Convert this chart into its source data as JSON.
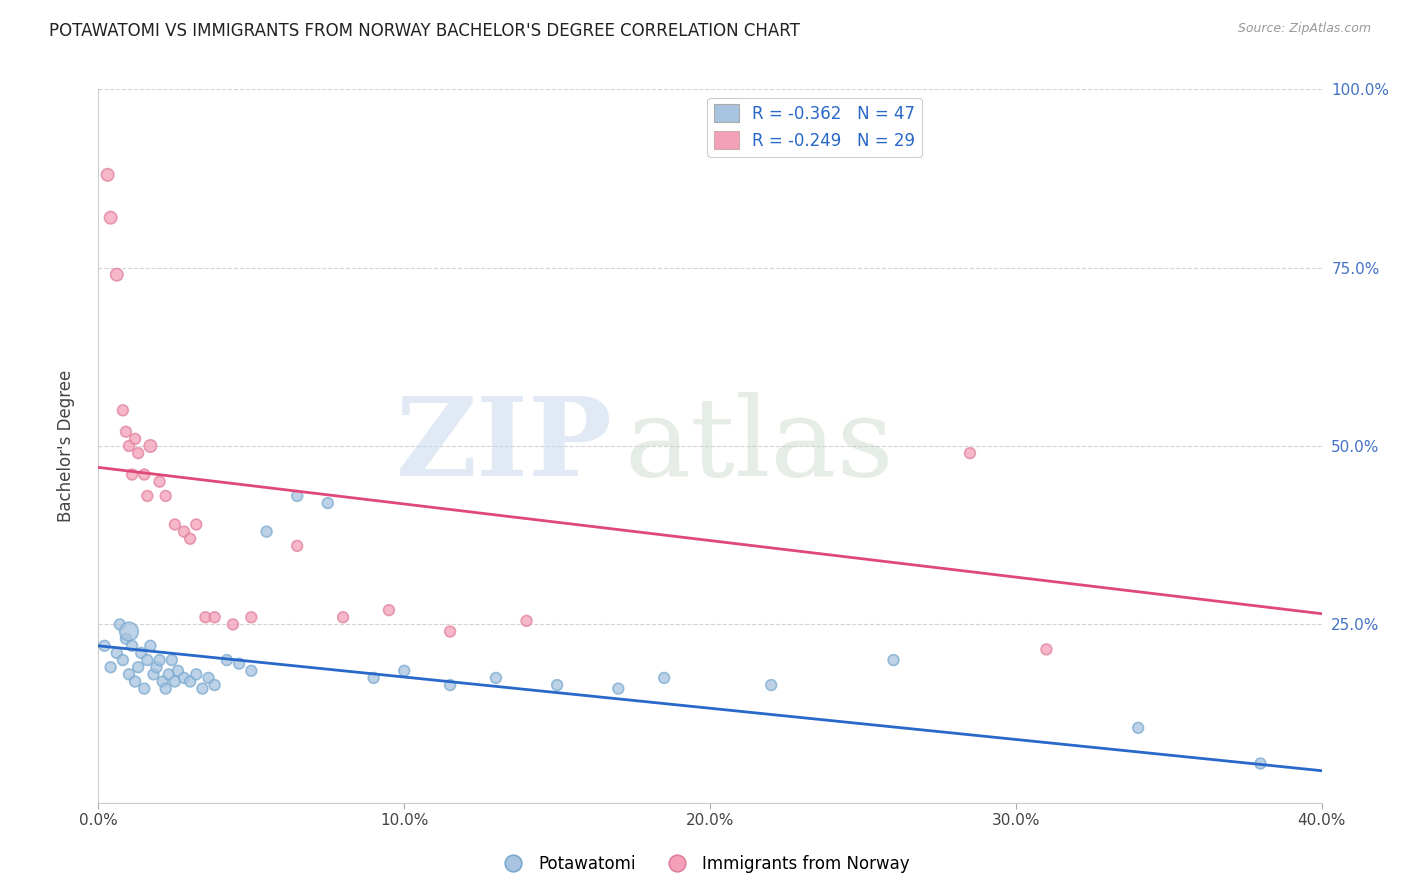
{
  "title": "POTAWATOMI VS IMMIGRANTS FROM NORWAY BACHELOR'S DEGREE CORRELATION CHART",
  "source": "Source: ZipAtlas.com",
  "ylabel": "Bachelor's Degree",
  "blue_label": "Potawatomi",
  "pink_label": "Immigrants from Norway",
  "blue_R": -0.362,
  "blue_N": 47,
  "pink_R": -0.249,
  "pink_N": 29,
  "blue_color": "#a8c4e0",
  "pink_color": "#f4a0b8",
  "blue_line_color": "#2868c8",
  "pink_line_color": "#e04878",
  "legend_R_color": "#2868c8",
  "xlim": [
    0.0,
    0.4
  ],
  "ylim": [
    0.0,
    1.0
  ],
  "x_ticks": [
    0.0,
    0.1,
    0.2,
    0.3,
    0.4
  ],
  "x_tick_labels": [
    "0.0%",
    "10.0%",
    "20.0%",
    "30.0%",
    "40.0%"
  ],
  "y_ticks_right": [
    0.25,
    0.5,
    0.75,
    1.0
  ],
  "y_tick_labels_right": [
    "25.0%",
    "50.0%",
    "75.0%",
    "100.0%"
  ],
  "blue_scatter_x": [
    0.002,
    0.004,
    0.006,
    0.007,
    0.008,
    0.009,
    0.01,
    0.01,
    0.011,
    0.012,
    0.013,
    0.014,
    0.015,
    0.016,
    0.017,
    0.018,
    0.019,
    0.02,
    0.021,
    0.022,
    0.023,
    0.024,
    0.025,
    0.026,
    0.028,
    0.03,
    0.032,
    0.034,
    0.036,
    0.038,
    0.042,
    0.046,
    0.05,
    0.055,
    0.065,
    0.075,
    0.09,
    0.1,
    0.115,
    0.13,
    0.15,
    0.17,
    0.185,
    0.22,
    0.26,
    0.34,
    0.38
  ],
  "blue_scatter_y": [
    0.22,
    0.19,
    0.21,
    0.25,
    0.2,
    0.23,
    0.18,
    0.24,
    0.22,
    0.17,
    0.19,
    0.21,
    0.16,
    0.2,
    0.22,
    0.18,
    0.19,
    0.2,
    0.17,
    0.16,
    0.18,
    0.2,
    0.17,
    0.185,
    0.175,
    0.17,
    0.18,
    0.16,
    0.175,
    0.165,
    0.2,
    0.195,
    0.185,
    0.38,
    0.43,
    0.42,
    0.175,
    0.185,
    0.165,
    0.175,
    0.165,
    0.16,
    0.175,
    0.165,
    0.2,
    0.105,
    0.055
  ],
  "blue_scatter_size": [
    60,
    60,
    60,
    60,
    60,
    60,
    60,
    180,
    60,
    60,
    60,
    60,
    60,
    60,
    60,
    60,
    60,
    60,
    60,
    60,
    60,
    60,
    60,
    60,
    60,
    60,
    60,
    60,
    60,
    60,
    60,
    60,
    60,
    60,
    60,
    60,
    60,
    60,
    60,
    60,
    60,
    60,
    60,
    60,
    60,
    60,
    60
  ],
  "pink_scatter_x": [
    0.003,
    0.004,
    0.006,
    0.008,
    0.009,
    0.01,
    0.011,
    0.012,
    0.013,
    0.015,
    0.016,
    0.017,
    0.02,
    0.022,
    0.025,
    0.028,
    0.03,
    0.032,
    0.035,
    0.038,
    0.044,
    0.05,
    0.065,
    0.08,
    0.095,
    0.115,
    0.14,
    0.285,
    0.31
  ],
  "pink_scatter_y": [
    0.88,
    0.82,
    0.74,
    0.55,
    0.52,
    0.5,
    0.46,
    0.51,
    0.49,
    0.46,
    0.43,
    0.5,
    0.45,
    0.43,
    0.39,
    0.38,
    0.37,
    0.39,
    0.26,
    0.26,
    0.25,
    0.26,
    0.36,
    0.26,
    0.27,
    0.24,
    0.255,
    0.49,
    0.215
  ],
  "pink_scatter_size": [
    80,
    80,
    80,
    60,
    60,
    60,
    60,
    60,
    60,
    60,
    60,
    80,
    60,
    60,
    60,
    60,
    60,
    60,
    60,
    60,
    60,
    60,
    60,
    60,
    60,
    60,
    60,
    60,
    60
  ],
  "blue_trend_x": [
    0.0,
    0.4
  ],
  "blue_trend_y": [
    0.22,
    0.045
  ],
  "pink_trend_x": [
    0.0,
    0.4
  ],
  "pink_trend_y": [
    0.47,
    0.265
  ]
}
